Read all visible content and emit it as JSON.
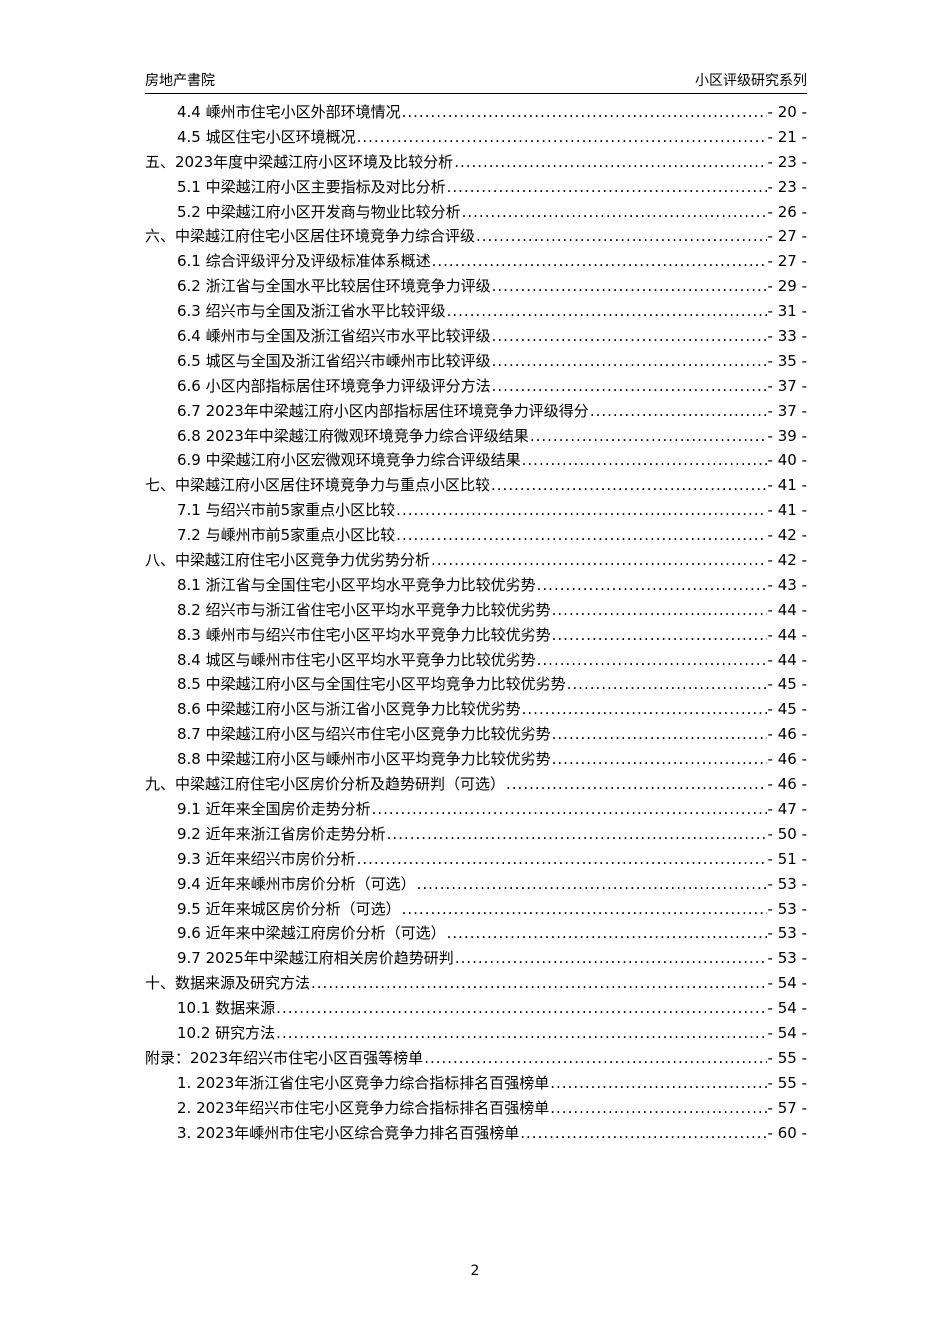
{
  "header": {
    "left": "房地产書院",
    "right": "小区评级研究系列"
  },
  "toc": [
    {
      "level": 2,
      "label": "4.4 嵊州市住宅小区外部环境情况",
      "page": "- 20 -"
    },
    {
      "level": 2,
      "label": "4.5 城区住宅小区环境概况",
      "page": "- 21 -"
    },
    {
      "level": 1,
      "label": "五、2023年度中梁越江府小区环境及比较分析",
      "page": "- 23 -"
    },
    {
      "level": 2,
      "label": "5.1 中梁越江府小区主要指标及对比分析",
      "page": "- 23 -"
    },
    {
      "level": 2,
      "label": "5.2 中梁越江府小区开发商与物业比较分析",
      "page": "- 26 -"
    },
    {
      "level": 1,
      "label": "六、中梁越江府住宅小区居住环境竞争力综合评级",
      "page": "- 27 -"
    },
    {
      "level": 2,
      "label": "6.1 综合评级评分及评级标准体系概述",
      "page": "- 27 -"
    },
    {
      "level": 2,
      "label": "6.2 浙江省与全国水平比较居住环境竞争力评级",
      "page": "- 29 -"
    },
    {
      "level": 2,
      "label": "6.3 绍兴市与全国及浙江省水平比较评级",
      "page": "- 31 -"
    },
    {
      "level": 2,
      "label": "6.4 嵊州市与全国及浙江省绍兴市水平比较评级",
      "page": "- 33 -"
    },
    {
      "level": 2,
      "label": "6.5 城区与全国及浙江省绍兴市嵊州市比较评级",
      "page": "- 35 -"
    },
    {
      "level": 2,
      "label": "6.6 小区内部指标居住环境竞争力评级评分方法",
      "page": "- 37 -"
    },
    {
      "level": 2,
      "label": "6.7 2023年中梁越江府小区内部指标居住环境竞争力评级得分",
      "page": "- 37 -"
    },
    {
      "level": 2,
      "label": "6.8 2023年中梁越江府微观环境竞争力综合评级结果",
      "page": "- 39 -"
    },
    {
      "level": 2,
      "label": "6.9 中梁越江府小区宏微观环境竞争力综合评级结果",
      "page": "- 40 -"
    },
    {
      "level": 1,
      "label": "七、中梁越江府小区居住环境竞争力与重点小区比较",
      "page": "- 41 -"
    },
    {
      "level": 2,
      "label": "7.1 与绍兴市前5家重点小区比较",
      "page": "- 41 -"
    },
    {
      "level": 2,
      "label": "7.2 与嵊州市前5家重点小区比较",
      "page": "- 42 -"
    },
    {
      "level": 1,
      "label": "八、中梁越江府住宅小区竞争力优劣势分析",
      "page": "- 42 -"
    },
    {
      "level": 2,
      "label": "8.1 浙江省与全国住宅小区平均水平竞争力比较优劣势",
      "page": "- 43 -"
    },
    {
      "level": 2,
      "label": "8.2 绍兴市与浙江省住宅小区平均水平竞争力比较优劣势",
      "page": "- 44 -"
    },
    {
      "level": 2,
      "label": "8.3 嵊州市与绍兴市住宅小区平均水平竞争力比较优劣势",
      "page": "- 44 -"
    },
    {
      "level": 2,
      "label": "8.4 城区与嵊州市住宅小区平均水平竞争力比较优劣势",
      "page": "- 44 -"
    },
    {
      "level": 2,
      "label": "8.5 中梁越江府小区与全国住宅小区平均竞争力比较优劣势",
      "page": "- 45 -"
    },
    {
      "level": 2,
      "label": "8.6 中梁越江府小区与浙江省小区竞争力比较优劣势",
      "page": "- 45 -"
    },
    {
      "level": 2,
      "label": "8.7 中梁越江府小区与绍兴市住宅小区竞争力比较优劣势",
      "page": "- 46 -"
    },
    {
      "level": 2,
      "label": "8.8 中梁越江府小区与嵊州市小区平均竞争力比较优劣势",
      "page": "- 46 -"
    },
    {
      "level": 1,
      "label": "九、中梁越江府住宅小区房价分析及趋势研判（可选）",
      "page": "- 46 -"
    },
    {
      "level": 2,
      "label": "9.1 近年来全国房价走势分析",
      "page": "- 47 -"
    },
    {
      "level": 2,
      "label": "9.2 近年来浙江省房价走势分析",
      "page": "- 50 -"
    },
    {
      "level": 2,
      "label": "9.3 近年来绍兴市房价分析",
      "page": "- 51 -"
    },
    {
      "level": 2,
      "label": "9.4 近年来嵊州市房价分析（可选）",
      "page": "- 53 -"
    },
    {
      "level": 2,
      "label": "9.5 近年来城区房价分析（可选）",
      "page": "- 53 -"
    },
    {
      "level": 2,
      "label": "9.6 近年来中梁越江府房价分析（可选）",
      "page": "- 53 -"
    },
    {
      "level": 2,
      "label": "9.7 2025年中梁越江府相关房价趋势研判",
      "page": "- 53 -"
    },
    {
      "level": 1,
      "label": "十、数据来源及研究方法",
      "page": "- 54 -"
    },
    {
      "level": 2,
      "label": "10.1 数据来源",
      "page": "- 54 -"
    },
    {
      "level": 2,
      "label": "10.2 研究方法",
      "page": "- 54 -"
    },
    {
      "level": 1,
      "label": "附录：2023年绍兴市住宅小区百强等榜单",
      "page": "- 55 -"
    },
    {
      "level": 2,
      "label": "1. 2023年浙江省住宅小区竞争力综合指标排名百强榜单",
      "page": "- 55 -"
    },
    {
      "level": 2,
      "label": "2. 2023年绍兴市住宅小区竞争力综合指标排名百强榜单",
      "page": "- 57 -"
    },
    {
      "level": 2,
      "label": "3. 2023年嵊州市住宅小区综合竞争力排名百强榜单",
      "page": "- 60 -"
    }
  ],
  "footer": {
    "page_number": "2"
  }
}
